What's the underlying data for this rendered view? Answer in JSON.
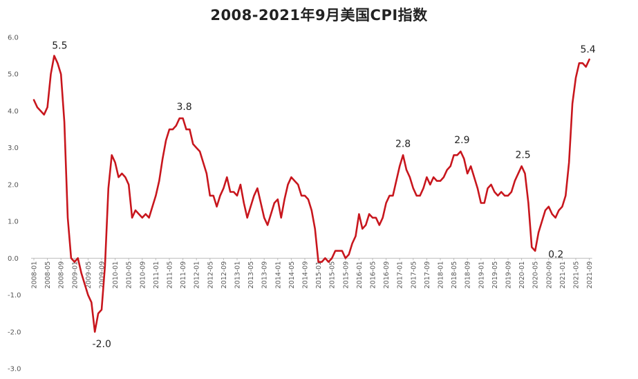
{
  "chart_data": {
    "type": "line",
    "title": "2008-2021年9月美国CPI指数",
    "xlabel": "",
    "ylabel": "",
    "ylim": [
      -3.0,
      6.0
    ],
    "yticks": [
      "6.0",
      "5.0",
      "4.0",
      "3.0",
      "2.0",
      "1.0",
      "0.0",
      "-1.0",
      "-2.0",
      "-3.0"
    ],
    "grid": false,
    "line_color": "#C8161D",
    "x_tick_labels": [
      "2008-01",
      "2008-05",
      "2008-09",
      "2009-01",
      "2009-05",
      "2009-09",
      "2010-01",
      "2010-05",
      "2010-09",
      "2011-01",
      "2011-05",
      "2011-09",
      "2012-01",
      "2012-05",
      "2012-09",
      "2013-01",
      "2013-05",
      "2013-09",
      "2014-01",
      "2014-05",
      "2014-09",
      "2015-01",
      "2015-05",
      "2015-09",
      "2016-01",
      "2016-05",
      "2016-09",
      "2017-01",
      "2017-05",
      "2017-09",
      "2018-01",
      "2018-05",
      "2018-09",
      "2019-01",
      "2019-05",
      "2019-09",
      "2020-01",
      "2020-05",
      "2020-09",
      "2021-01",
      "2021-05",
      "2021-09"
    ],
    "series": [
      {
        "name": "",
        "values": [
          4.3,
          4.1,
          4.0,
          3.9,
          4.1,
          5.0,
          5.5,
          5.3,
          5.0,
          3.7,
          1.1,
          0.0,
          -0.1,
          0.0,
          -0.4,
          -0.7,
          -1.0,
          -1.2,
          -2.0,
          -1.5,
          -1.4,
          -0.2,
          1.9,
          2.8,
          2.6,
          2.2,
          2.3,
          2.2,
          2.0,
          1.1,
          1.3,
          1.2,
          1.1,
          1.2,
          1.1,
          1.4,
          1.7,
          2.1,
          2.7,
          3.2,
          3.5,
          3.5,
          3.6,
          3.8,
          3.8,
          3.5,
          3.5,
          3.1,
          3.0,
          2.9,
          2.6,
          2.3,
          1.7,
          1.7,
          1.4,
          1.7,
          1.9,
          2.2,
          1.8,
          1.8,
          1.7,
          2.0,
          1.5,
          1.1,
          1.4,
          1.7,
          1.9,
          1.5,
          1.1,
          0.9,
          1.2,
          1.5,
          1.6,
          1.1,
          1.6,
          2.0,
          2.2,
          2.1,
          2.0,
          1.7,
          1.7,
          1.6,
          1.3,
          0.8,
          -0.1,
          -0.1,
          0.0,
          -0.1,
          0.0,
          0.2,
          0.2,
          0.2,
          0.0,
          0.1,
          0.4,
          0.6,
          1.2,
          0.8,
          0.9,
          1.2,
          1.1,
          1.1,
          0.9,
          1.1,
          1.5,
          1.7,
          1.7,
          2.1,
          2.5,
          2.8,
          2.4,
          2.2,
          1.9,
          1.7,
          1.7,
          1.9,
          2.2,
          2.0,
          2.2,
          2.1,
          2.1,
          2.2,
          2.4,
          2.5,
          2.8,
          2.8,
          2.9,
          2.7,
          2.3,
          2.5,
          2.2,
          1.9,
          1.5,
          1.5,
          1.9,
          2.0,
          1.8,
          1.7,
          1.8,
          1.7,
          1.7,
          1.8,
          2.1,
          2.3,
          2.5,
          2.3,
          1.5,
          0.3,
          0.2,
          0.7,
          1.0,
          1.3,
          1.4,
          1.2,
          1.1,
          1.3,
          1.4,
          1.7,
          2.6,
          4.2,
          4.9,
          5.3,
          5.3,
          5.2,
          5.4
        ]
      }
    ],
    "annotations": [
      {
        "label": "5.5",
        "x": "2008-07",
        "y": 5.5
      },
      {
        "label": "-2.0",
        "x": "2009-07",
        "y": -2.0
      },
      {
        "label": "3.8",
        "x": "2011-09",
        "y": 3.8
      },
      {
        "label": "2.8",
        "x": "2017-02",
        "y": 2.8
      },
      {
        "label": "2.9",
        "x": "2018-07",
        "y": 2.9
      },
      {
        "label": "2.5",
        "x": "2020-01",
        "y": 2.5
      },
      {
        "label": "0.2",
        "x": "2020-05",
        "y": 0.2
      },
      {
        "label": "5.4",
        "x": "2021-09",
        "y": 5.4
      }
    ]
  }
}
